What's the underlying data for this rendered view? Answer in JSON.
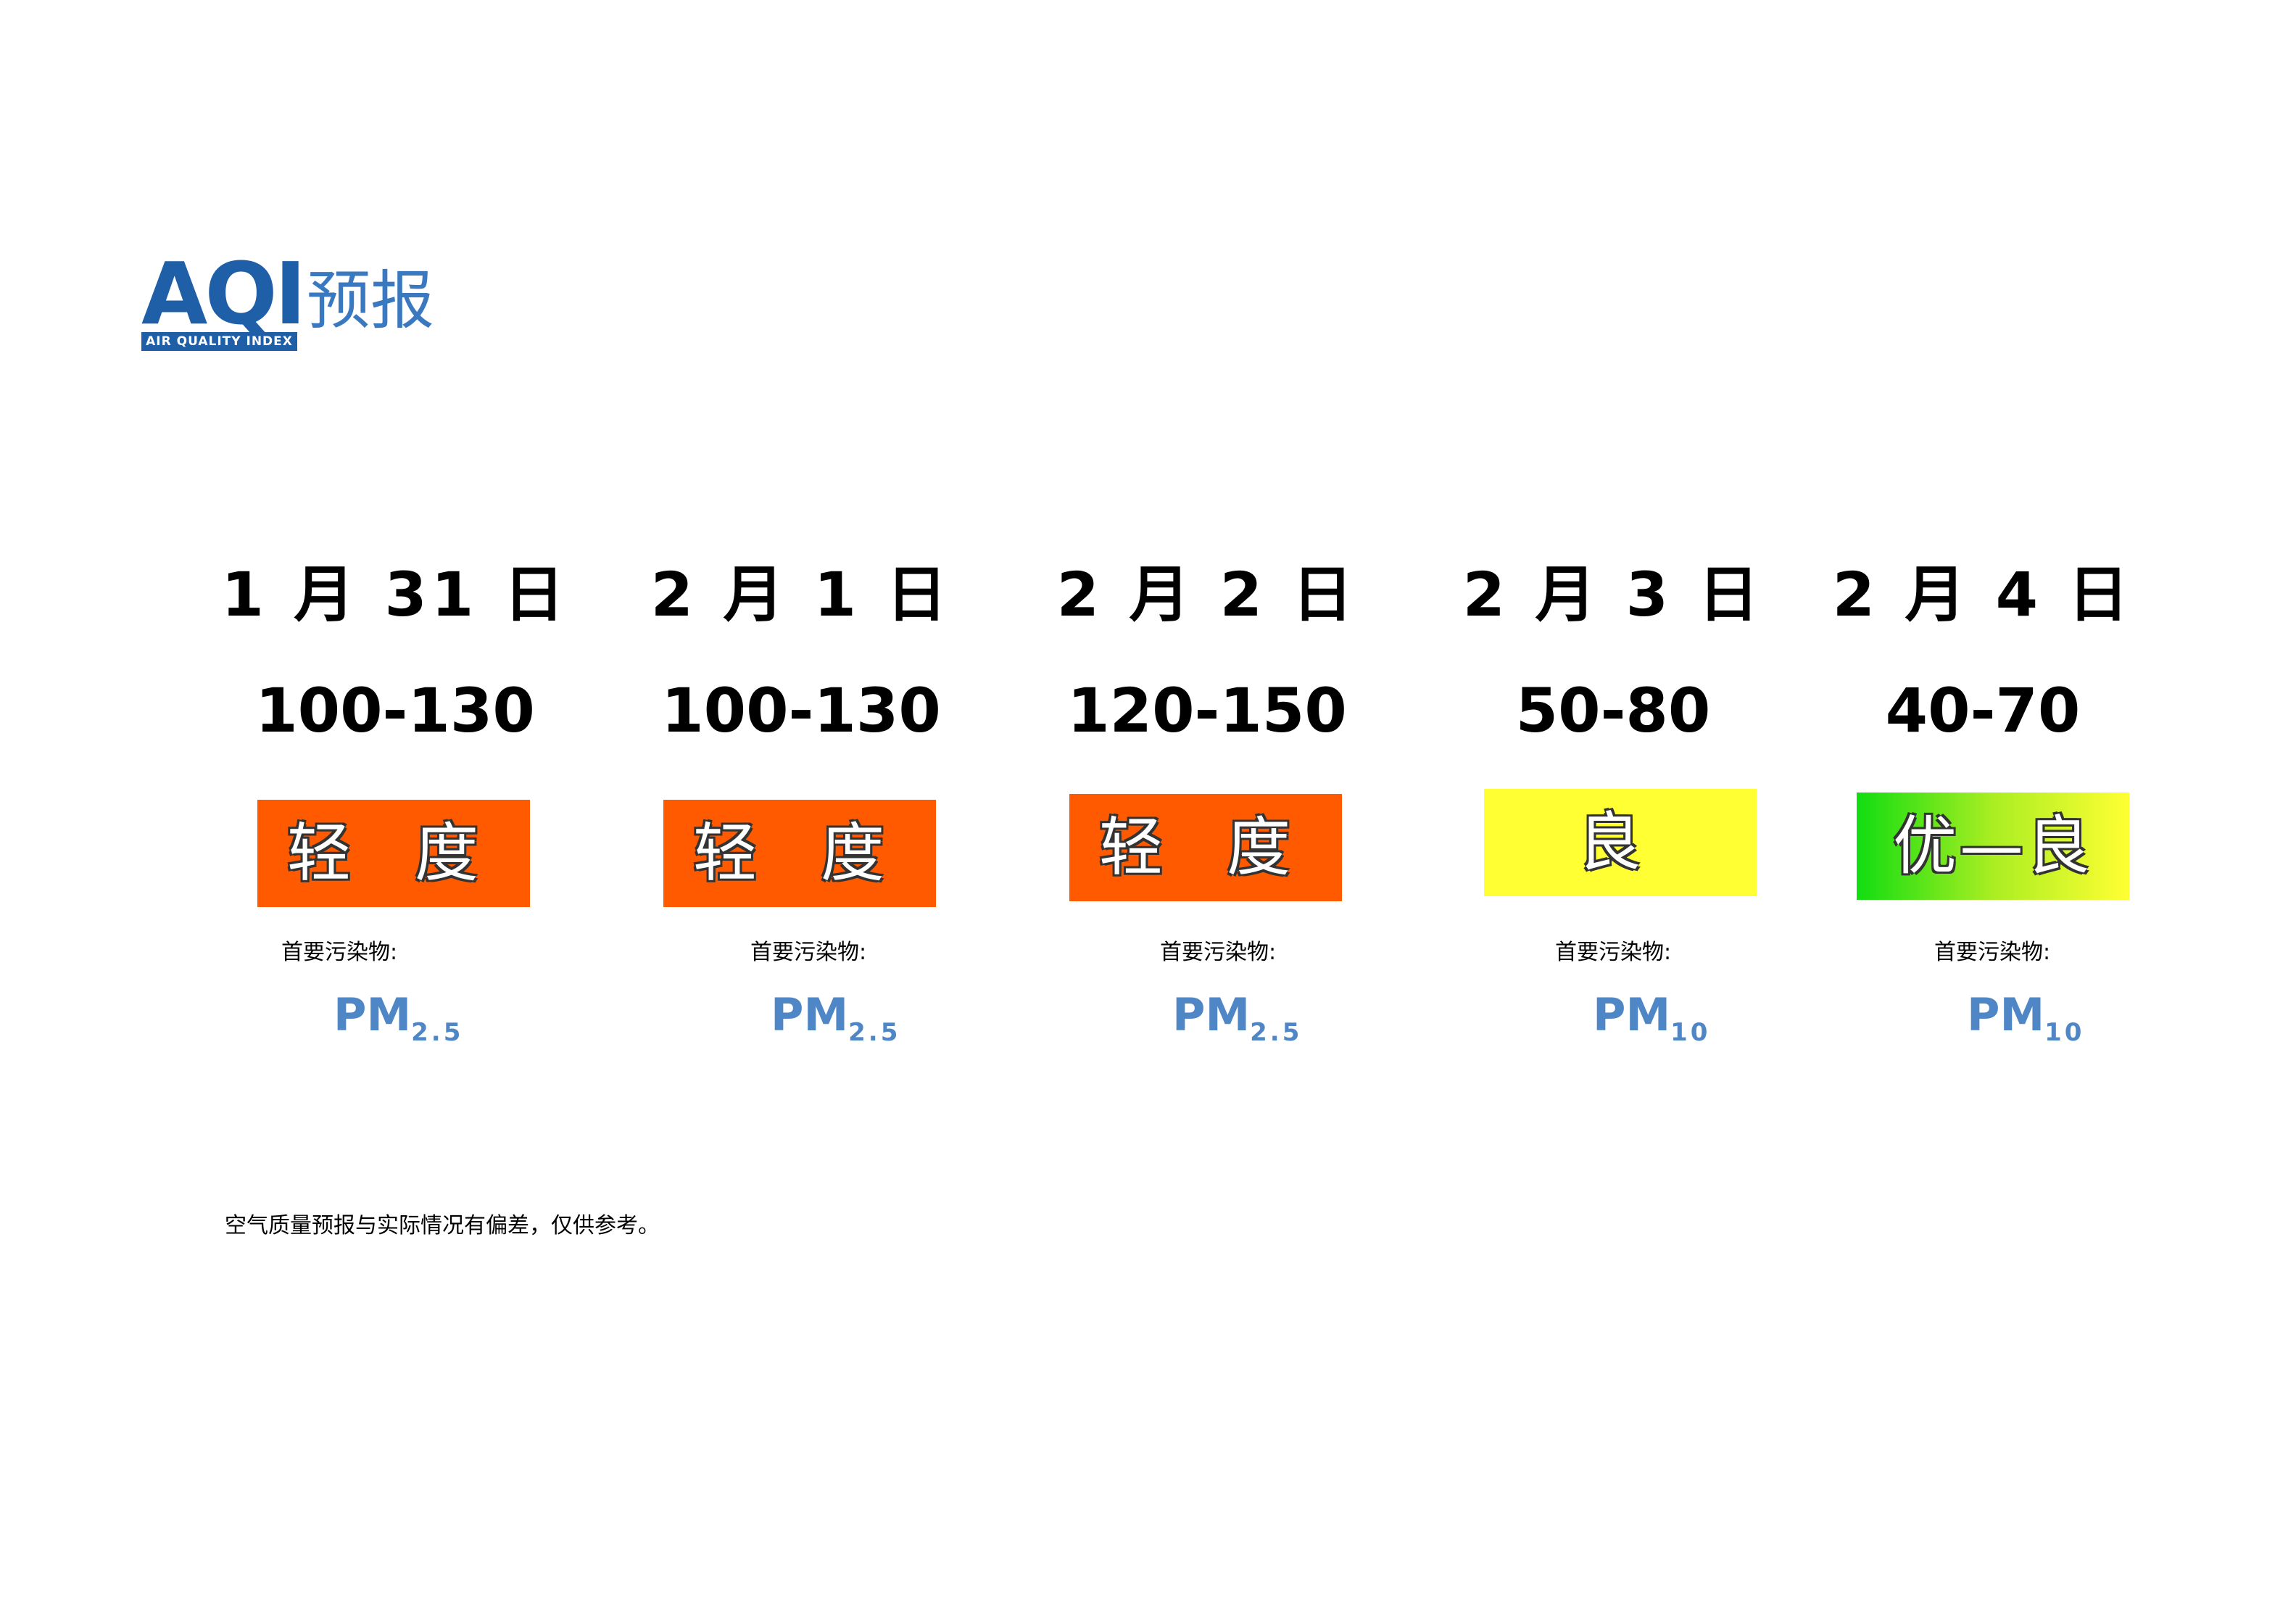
{
  "logo": {
    "letters": "AQI",
    "subtitle": "AIR QUALITY INDEX",
    "title_cn": "预报"
  },
  "forecasts": [
    {
      "date": "1 月 31 日",
      "range": "100-130",
      "level": "轻 度",
      "pollutant_label": "首要污染物:",
      "pollutant": "PM",
      "pollutant_sub": "2.5",
      "color": "#ff5a00"
    },
    {
      "date": "2 月 1 日",
      "range": "100-130",
      "level": "轻 度",
      "pollutant_label": "首要污染物:",
      "pollutant": "PM",
      "pollutant_sub": "2.5",
      "color": "#ff5a00"
    },
    {
      "date": "2 月 2 日",
      "range": "120-150",
      "level": "轻 度",
      "pollutant_label": "首要污染物:",
      "pollutant": "PM",
      "pollutant_sub": "2.5",
      "color": "#ff5a00"
    },
    {
      "date": "2 月 3 日",
      "range": "50-80",
      "level": "良",
      "pollutant_label": "首要污染物:",
      "pollutant": "PM",
      "pollutant_sub": "10",
      "color": "#ffff33"
    },
    {
      "date": "2 月 4 日",
      "range": "40-70",
      "level": "优—良",
      "pollutant_label": "首要污染物:",
      "pollutant": "PM",
      "pollutant_sub": "10",
      "color": "#11dd11"
    }
  ],
  "note": "空气质量预报与实际情况有偏差，仅供参考。"
}
